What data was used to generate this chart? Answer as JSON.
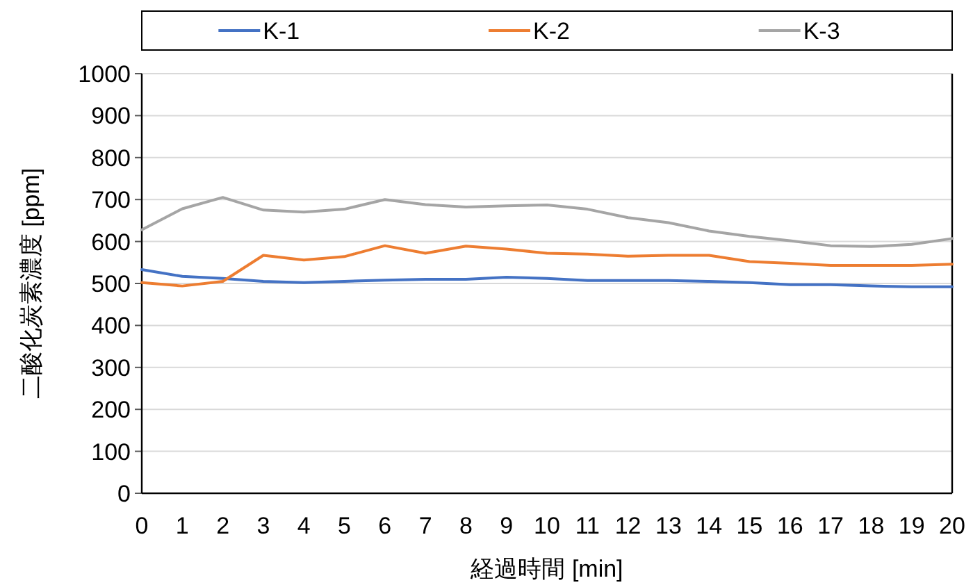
{
  "chart_data": {
    "type": "line",
    "xlabel": "経過時間 [min]",
    "ylabel": "二酸化炭素濃度 [ppm]",
    "x": [
      0,
      1,
      2,
      3,
      4,
      5,
      6,
      7,
      8,
      9,
      10,
      11,
      12,
      13,
      14,
      15,
      16,
      17,
      18,
      19,
      20
    ],
    "xlim": [
      0,
      20
    ],
    "xticks": [
      0,
      1,
      2,
      3,
      4,
      5,
      6,
      7,
      8,
      9,
      10,
      11,
      12,
      13,
      14,
      15,
      16,
      17,
      18,
      19,
      20
    ],
    "ylim": [
      0,
      1000
    ],
    "yticks": [
      0,
      100,
      200,
      300,
      400,
      500,
      600,
      700,
      800,
      900,
      1000
    ],
    "grid": "y",
    "legend": "top",
    "marker": "none",
    "line_style": "solid",
    "series": [
      {
        "name": "K-1",
        "color": "#4472c4",
        "values": [
          533,
          517,
          512,
          505,
          502,
          505,
          508,
          510,
          510,
          515,
          512,
          507,
          507,
          507,
          505,
          502,
          497,
          497,
          494,
          492,
          492
        ]
      },
      {
        "name": "K-2",
        "color": "#ed7d31",
        "values": [
          502,
          494,
          505,
          567,
          556,
          564,
          590,
          572,
          589,
          582,
          572,
          570,
          565,
          567,
          567,
          552,
          548,
          543,
          543,
          543,
          546
        ]
      },
      {
        "name": "K-3",
        "color": "#a5a5a5",
        "values": [
          628,
          678,
          705,
          675,
          670,
          677,
          700,
          688,
          682,
          685,
          687,
          677,
          657,
          645,
          625,
          612,
          602,
          590,
          588,
          593,
          607
        ]
      }
    ]
  }
}
